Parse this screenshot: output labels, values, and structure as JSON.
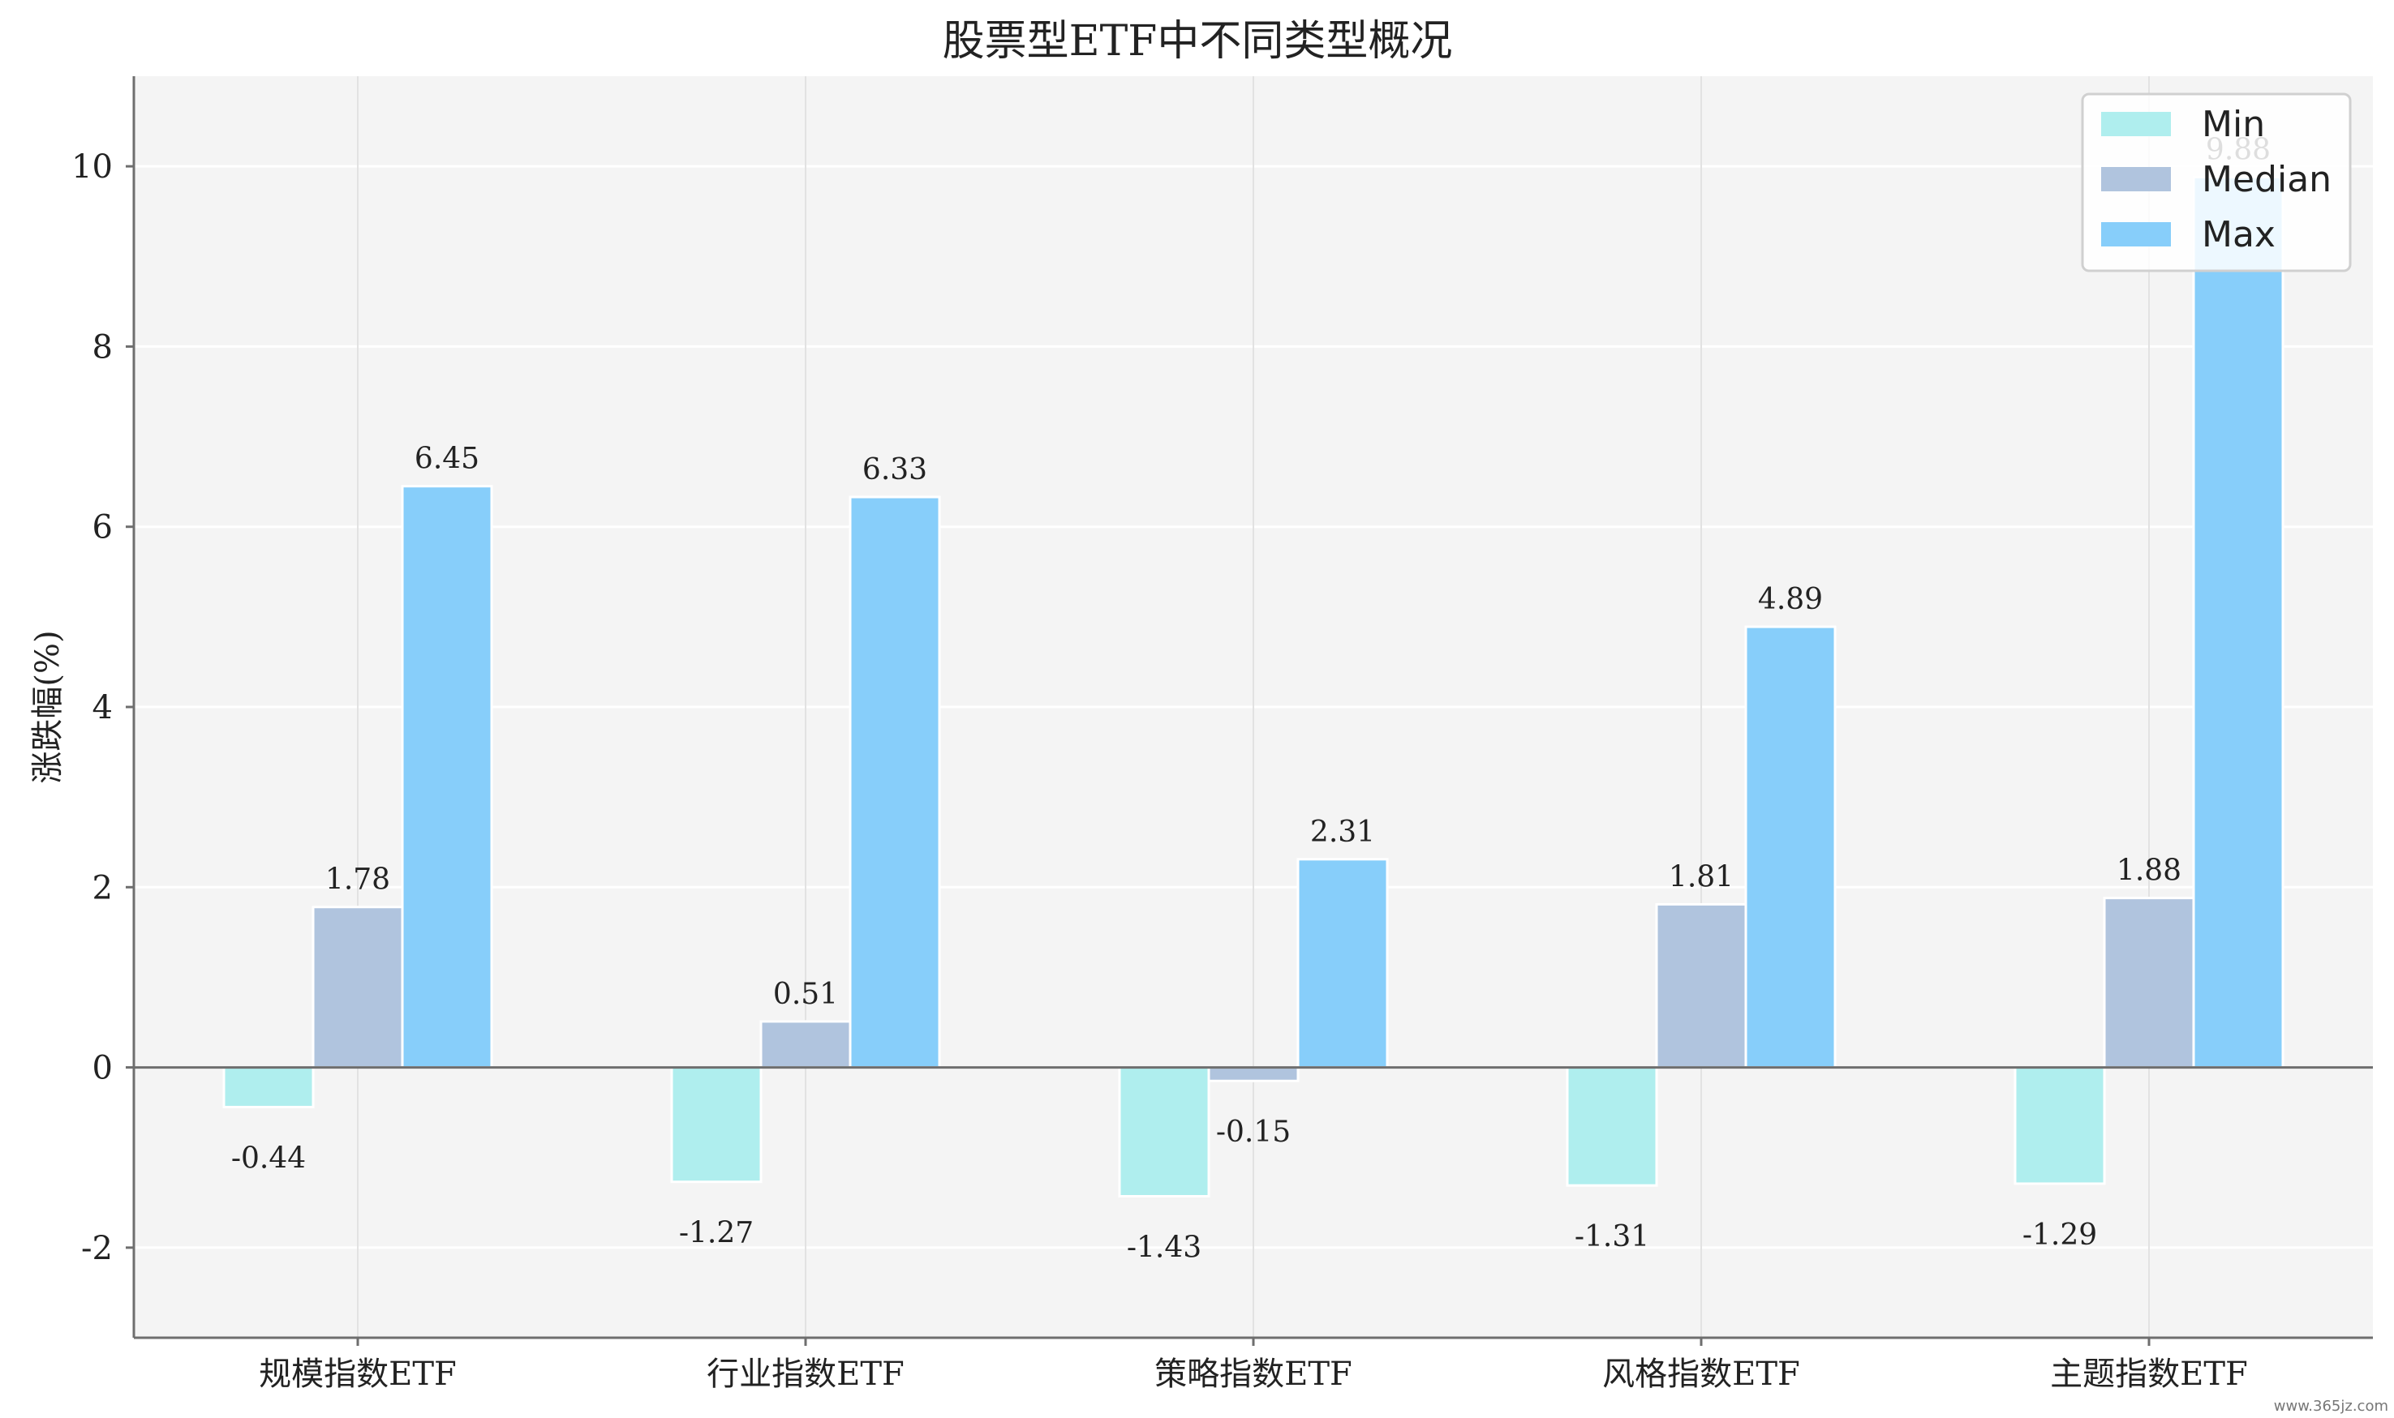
{
  "chart_data": {
    "type": "bar",
    "title": "股票型ETF中不同类型概况",
    "xlabel": "",
    "ylabel": "涨跌幅(%)",
    "ylim": [
      -3,
      11
    ],
    "yticks": [
      -2,
      0,
      2,
      4,
      6,
      8,
      10
    ],
    "categories": [
      "规模指数ETF",
      "行业指数ETF",
      "策略指数ETF",
      "风格指数ETF",
      "主题指数ETF"
    ],
    "series": [
      {
        "name": "Min",
        "color": "#afeeee",
        "values": [
          -0.44,
          -1.27,
          -1.43,
          -1.31,
          -1.29
        ]
      },
      {
        "name": "Median",
        "color": "#b0c4de",
        "values": [
          1.78,
          0.51,
          -0.15,
          1.81,
          1.88
        ]
      },
      {
        "name": "Max",
        "color": "#87cefa",
        "values": [
          6.45,
          6.33,
          2.31,
          4.89,
          9.88
        ]
      }
    ],
    "legend": "top-right",
    "grid": true,
    "background": "#f4f4f4"
  },
  "watermark": "www.365jz.com"
}
